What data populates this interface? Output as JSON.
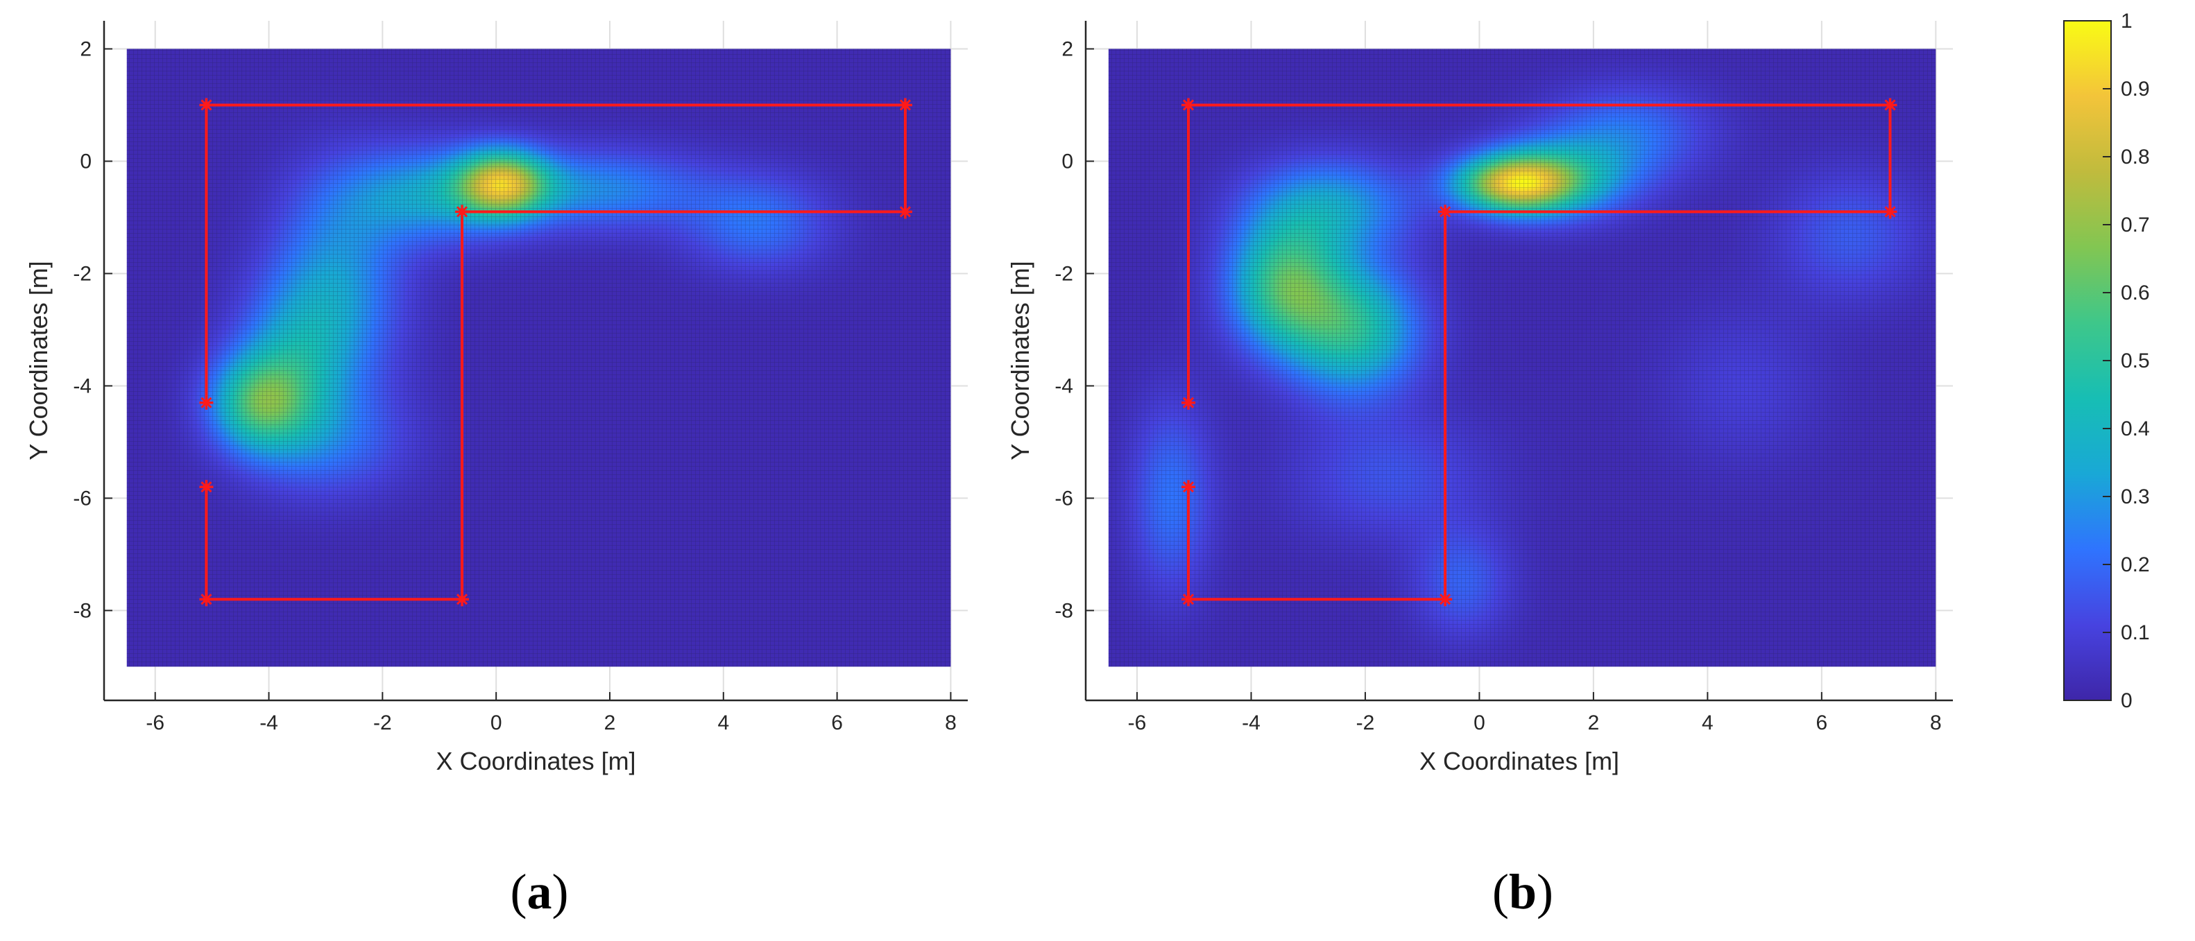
{
  "chart_data": [
    {
      "type": "heatmap",
      "panel_label": {
        "open": "(",
        "letter": "a",
        "close": ")"
      },
      "xlabel": "X Coordinates [m]",
      "ylabel": "Y Coordinates [m]",
      "xlim": [
        -6.9,
        8.3
      ],
      "ylim": [
        -9.6,
        2.5
      ],
      "data_extent": {
        "x": [
          -6.5,
          8.0
        ],
        "y": [
          -9.0,
          2.0
        ]
      },
      "xticks": [
        -6,
        -4,
        -2,
        0,
        2,
        4,
        6,
        8
      ],
      "yticks": [
        2,
        0,
        -2,
        -4,
        -6,
        -8
      ],
      "grid": true,
      "hotspots": [
        {
          "x": 0.1,
          "y": -0.4,
          "intensity": 0.68,
          "sx": 0.55,
          "sy": 0.4
        },
        {
          "x": -4.2,
          "y": -4.3,
          "intensity": 0.45,
          "sx": 0.6,
          "sy": 0.6
        },
        {
          "x": -1.2,
          "y": -0.6,
          "intensity": 0.3,
          "sx": 1.1,
          "sy": 0.6
        },
        {
          "x": 1.8,
          "y": -0.5,
          "intensity": 0.25,
          "sx": 1.3,
          "sy": 0.5
        },
        {
          "x": 4.6,
          "y": -1.1,
          "intensity": 0.2,
          "sx": 0.9,
          "sy": 0.6
        },
        {
          "x": -2.8,
          "y": -2.3,
          "intensity": 0.28,
          "sx": 0.8,
          "sy": 1.3
        },
        {
          "x": -3.6,
          "y": -3.6,
          "intensity": 0.25,
          "sx": 0.7,
          "sy": 1.0
        },
        {
          "x": -2.9,
          "y": -5.0,
          "intensity": 0.16,
          "sx": 1.0,
          "sy": 0.7
        }
      ],
      "path": {
        "color": "#ff1a1a",
        "vertices": [
          [
            -5.1,
            1.0
          ],
          [
            7.2,
            1.0
          ],
          [
            7.2,
            -0.9
          ],
          [
            -0.6,
            -0.9
          ],
          [
            -0.6,
            -7.8
          ],
          [
            -5.1,
            -7.8
          ],
          [
            -5.1,
            -5.8
          ]
        ],
        "isolated_segments": [
          [
            [
              -5.1,
              1.0
            ],
            [
              -5.1,
              -4.3
            ]
          ]
        ],
        "markers": [
          [
            -5.1,
            1.0
          ],
          [
            7.2,
            1.0
          ],
          [
            7.2,
            -0.9
          ],
          [
            -0.6,
            -0.9
          ],
          [
            -5.1,
            -4.3
          ],
          [
            -5.1,
            -5.8
          ],
          [
            -5.1,
            -7.8
          ],
          [
            -0.6,
            -7.8
          ]
        ]
      }
    },
    {
      "type": "heatmap",
      "panel_label": {
        "open": "(",
        "letter": "b",
        "close": ")"
      },
      "xlabel": "X Coordinates [m]",
      "ylabel": "Y Coordinates [m]",
      "xlim": [
        -6.9,
        8.3
      ],
      "ylim": [
        -9.6,
        2.5
      ],
      "data_extent": {
        "x": [
          -6.5,
          8.0
        ],
        "y": [
          -9.0,
          2.0
        ]
      },
      "xticks": [
        -6,
        -4,
        -2,
        0,
        2,
        4,
        6,
        8
      ],
      "yticks": [
        2,
        0,
        -2,
        -4,
        -6,
        -8
      ],
      "grid": true,
      "hotspots": [
        {
          "x": 0.6,
          "y": -0.4,
          "intensity": 0.72,
          "sx": 0.7,
          "sy": 0.35
        },
        {
          "x": 1.4,
          "y": -0.3,
          "intensity": 0.35,
          "sx": 0.9,
          "sy": 0.5
        },
        {
          "x": -3.4,
          "y": -2.2,
          "intensity": 0.52,
          "sx": 0.7,
          "sy": 0.8
        },
        {
          "x": -2.2,
          "y": -3.0,
          "intensity": 0.45,
          "sx": 0.8,
          "sy": 0.8
        },
        {
          "x": -2.6,
          "y": -0.8,
          "intensity": 0.3,
          "sx": 1.0,
          "sy": 0.6
        },
        {
          "x": 2.6,
          "y": 0.5,
          "intensity": 0.2,
          "sx": 1.0,
          "sy": 0.6
        },
        {
          "x": 6.5,
          "y": -1.3,
          "intensity": 0.15,
          "sx": 0.9,
          "sy": 0.8
        },
        {
          "x": -5.4,
          "y": -6.0,
          "intensity": 0.2,
          "sx": 0.5,
          "sy": 1.2
        },
        {
          "x": -1.6,
          "y": -5.6,
          "intensity": 0.13,
          "sx": 1.2,
          "sy": 0.8
        },
        {
          "x": -0.3,
          "y": -7.5,
          "intensity": 0.16,
          "sx": 0.6,
          "sy": 0.7
        },
        {
          "x": 4.6,
          "y": -4.0,
          "intensity": 0.08,
          "sx": 1.0,
          "sy": 1.0
        }
      ],
      "path": {
        "color": "#ff1a1a",
        "vertices": [
          [
            -5.1,
            1.0
          ],
          [
            7.2,
            1.0
          ],
          [
            7.2,
            -0.9
          ],
          [
            -0.6,
            -0.9
          ],
          [
            -0.6,
            -7.8
          ],
          [
            -5.1,
            -7.8
          ],
          [
            -5.1,
            -5.8
          ]
        ],
        "isolated_segments": [
          [
            [
              -5.1,
              1.0
            ],
            [
              -5.1,
              -4.3
            ]
          ]
        ],
        "markers": [
          [
            -5.1,
            1.0
          ],
          [
            7.2,
            1.0
          ],
          [
            7.2,
            -0.9
          ],
          [
            -0.6,
            -0.9
          ],
          [
            -5.1,
            -4.3
          ],
          [
            -5.1,
            -5.8
          ],
          [
            -5.1,
            -7.8
          ],
          [
            -0.6,
            -7.8
          ]
        ]
      }
    }
  ],
  "colorbar": {
    "colormap": "parula",
    "range": [
      0,
      1
    ],
    "ticks": [
      1,
      0.9,
      0.8,
      0.7,
      0.6,
      0.5,
      0.4,
      0.3,
      0.2,
      0.1,
      0
    ],
    "tick_labels": [
      "1",
      "0.9",
      "0.8",
      "0.7",
      "0.6",
      "0.5",
      "0.4",
      "0.3",
      "0.2",
      "0.1",
      "0"
    ],
    "colors": [
      "#3e26a8",
      "#4743e0",
      "#2f74fe",
      "#19a8d6",
      "#17beb4",
      "#3ec78a",
      "#82c652",
      "#c0bb3d",
      "#f3c43a",
      "#f9fb15"
    ]
  }
}
